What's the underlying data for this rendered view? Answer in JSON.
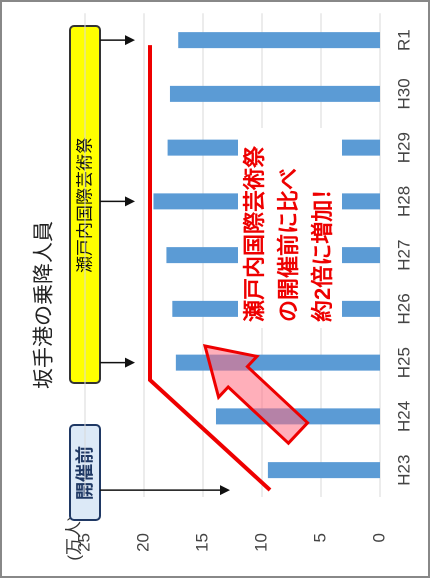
{
  "chart_data": {
    "type": "bar",
    "title": "坂手港の乗降人員",
    "unit_label": "(万人)",
    "categories": [
      "H23",
      "H24",
      "H25",
      "H26",
      "H27",
      "H28",
      "H29",
      "H30",
      "R1"
    ],
    "values": [
      9.5,
      13.9,
      17.3,
      17.6,
      18.1,
      19.2,
      18,
      17.8,
      17.1
    ],
    "color": "#5b9bd5",
    "ylim": [
      0,
      25
    ],
    "yticks": [
      0,
      5,
      10,
      15,
      20,
      25
    ],
    "grid": true,
    "annotations": {
      "festival_box": "瀬戸内国際芸術祭",
      "before_box": "開催前",
      "callout": [
        "瀬戸内国際芸術祭",
        "の開催前に比べ",
        "約2倍に増加！"
      ]
    }
  }
}
